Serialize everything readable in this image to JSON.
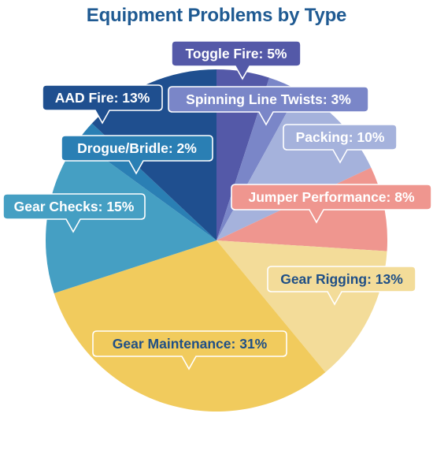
{
  "chart_data": {
    "type": "pie",
    "title": "Equipment Problems by Type",
    "slices": [
      {
        "label": "Toggle Fire",
        "value": 5,
        "color": "#5459a8",
        "text_color": "#ffffff"
      },
      {
        "label": "Spinning Line Twists",
        "value": 3,
        "color": "#7a86c8",
        "text_color": "#ffffff"
      },
      {
        "label": "Packing",
        "value": 10,
        "color": "#a5b2dc",
        "text_color": "#ffffff"
      },
      {
        "label": "Jumper Performance",
        "value": 8,
        "color": "#ef968f",
        "text_color": "#ffffff"
      },
      {
        "label": "Gear Rigging",
        "value": 13,
        "color": "#f3dc99",
        "text_color": "#1f4f86"
      },
      {
        "label": "Gear Maintenance",
        "value": 31,
        "color": "#f1cb5d",
        "text_color": "#1f4f86"
      },
      {
        "label": "Gear Checks",
        "value": 15,
        "color": "#459fc3",
        "text_color": "#ffffff"
      },
      {
        "label": "Drogue/Bridle",
        "value": 2,
        "color": "#2a7fb4",
        "text_color": "#ffffff"
      },
      {
        "label": "AAD Fire",
        "value": 13,
        "color": "#1f4f8f",
        "text_color": "#ffffff"
      }
    ]
  }
}
